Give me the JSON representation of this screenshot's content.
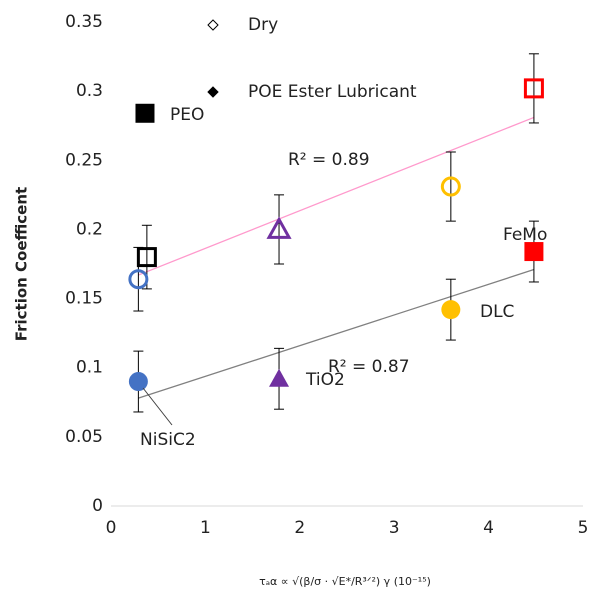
{
  "chart_data": {
    "type": "scatter",
    "y_label": "Friction Coefficent",
    "x_label": "τₐα ∝ √(β/σ · √E*/R³ᐟ²) γ (10⁻¹⁵)",
    "xlim": [
      0,
      5
    ],
    "xticks": [
      0,
      1,
      2,
      3,
      4,
      5
    ],
    "ylim": [
      0,
      0.35
    ],
    "yticks": [
      0,
      0.05,
      0.1,
      0.15,
      0.2,
      0.25,
      0.3,
      0.35
    ],
    "series": [
      {
        "name": "Dry",
        "filled": false,
        "x": [
          0.38,
          0.29,
          1.78,
          3.6,
          4.48
        ],
        "values": [
          0.18,
          0.164,
          0.2,
          0.231,
          0.302
        ],
        "errors": [
          0.023,
          0.023,
          0.025,
          0.025,
          0.025
        ],
        "shapes": [
          "square",
          "circle",
          "triangle",
          "circle",
          "square"
        ],
        "colors": [
          "#000000",
          "#4472c4",
          "#7030a0",
          "#ffc000",
          "#ff0000"
        ]
      },
      {
        "name": "POE Ester Lubricant",
        "filled": true,
        "x": [
          0.36,
          0.29,
          1.78,
          3.6,
          4.48
        ],
        "values": [
          0.284,
          0.09,
          0.092,
          0.142,
          0.184
        ],
        "errors": [
          null,
          0.022,
          0.022,
          0.022,
          0.022
        ],
        "shapes": [
          "square",
          "circle",
          "triangle",
          "circle",
          "square"
        ],
        "colors": [
          "#000000",
          "#4472c4",
          "#7030a0",
          "#ffc000",
          "#ff0000"
        ]
      }
    ],
    "trendlines": [
      {
        "label": "R² = 0.89",
        "color": "#ff99cc",
        "x": [
          0.29,
          4.48
        ],
        "values": [
          0.167,
          0.281
        ]
      },
      {
        "label": "R² = 0.87",
        "color": "#808080",
        "x": [
          0.29,
          4.48
        ],
        "values": [
          0.078,
          0.171
        ]
      }
    ],
    "annotations": [
      "PEO",
      "NiSiC2",
      "TiO2",
      "DLC",
      "FeMo"
    ]
  }
}
